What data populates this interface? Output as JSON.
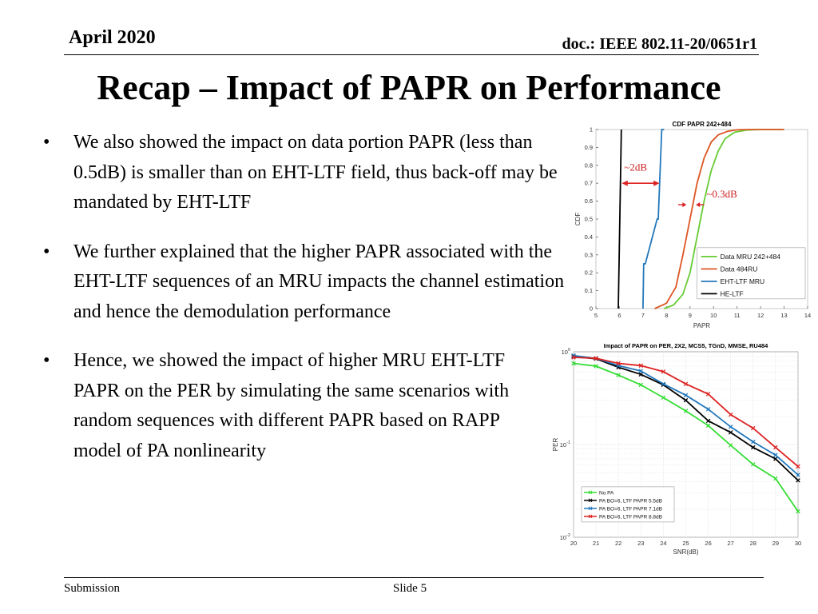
{
  "header": {
    "date": "April 2020",
    "doc": "doc.: IEEE 802.11-20/0651r1"
  },
  "title": "Recap – Impact of PAPR on Performance",
  "bullets": [
    "We also showed the impact on data portion PAPR (less than 0.5dB) is  smaller than on EHT-LTF field, thus back-off may be mandated by EHT-LTF",
    "We further explained that the higher PAPR associated with the EHT-LTF sequences of an MRU impacts the channel estimation and hence the demodulation performance",
    "Hence, we showed the impact of higher MRU EHT-LTF PAPR on the PER by simulating the same scenarios with random sequences with different PAPR based on RAPP model of PA nonlinearity"
  ],
  "bullet_glyph": "•",
  "footer": {
    "left": "Submission",
    "center": "Slide 5"
  },
  "chart_data": [
    {
      "type": "line",
      "title": "CDF PAPR 242+484",
      "xlabel": "PAPR",
      "ylabel": "CDF",
      "xlim": [
        5,
        14
      ],
      "ylim": [
        0,
        1
      ],
      "xticks": [
        "5",
        "6",
        "7",
        "8",
        "9",
        "10",
        "11",
        "12",
        "13",
        "14"
      ],
      "yticks": [
        "0",
        "0.1",
        "0.2",
        "0.3",
        "0.4",
        "0.5",
        "0.6",
        "0.7",
        "0.8",
        "0.9",
        "1"
      ],
      "legend_position": "bottom-right",
      "series": [
        {
          "name": "Data MRU 242+484",
          "color": "#66cc33",
          "x": [
            7.9,
            8.3,
            8.7,
            9.0,
            9.3,
            9.6,
            9.9,
            10.2,
            10.5,
            10.9,
            11.4,
            12.0,
            13.0
          ],
          "y": [
            0,
            0.02,
            0.08,
            0.2,
            0.4,
            0.6,
            0.77,
            0.88,
            0.95,
            0.985,
            0.997,
            1,
            1
          ]
        },
        {
          "name": "Data 484RU",
          "color": "#dd5522",
          "x": [
            7.5,
            8.0,
            8.4,
            8.7,
            9.0,
            9.3,
            9.6,
            9.9,
            10.2,
            10.6,
            11.0,
            11.5,
            13.0
          ],
          "y": [
            0,
            0.03,
            0.12,
            0.3,
            0.5,
            0.7,
            0.84,
            0.93,
            0.97,
            0.99,
            0.998,
            1,
            1
          ]
        },
        {
          "name": "EHT-LTF MRU",
          "color": "#2277bb",
          "x": [
            7.0,
            7.03,
            7.1,
            7.6,
            7.65,
            7.8,
            7.9
          ],
          "y": [
            0,
            0.25,
            0.25,
            0.5,
            0.5,
            1,
            1
          ]
        },
        {
          "name": "HE-LTF",
          "color": "#000000",
          "x": [
            5.95,
            6.08
          ],
          "y": [
            0,
            1
          ]
        }
      ],
      "annotations": [
        {
          "text": "~2dB",
          "color": "#cc2222"
        },
        {
          "text": "~0.3dB",
          "color": "#cc2222"
        }
      ]
    },
    {
      "type": "line",
      "title": "Impact of PAPR on PER, 2X2, MCS5, TGnD, MMSE, RU484",
      "xlabel": "SNR(dB)",
      "ylabel": "PER",
      "yscale": "log",
      "xlim": [
        20,
        30
      ],
      "ylim": [
        0.01,
        1
      ],
      "grid": true,
      "xticks": [
        "20",
        "21",
        "22",
        "23",
        "24",
        "25",
        "26",
        "27",
        "28",
        "29",
        "30"
      ],
      "legend_position": "bottom-left",
      "x": [
        20,
        21,
        22,
        23,
        24,
        25,
        26,
        27,
        28,
        29,
        30
      ],
      "series": [
        {
          "name": "No PA",
          "color": "#33dd33",
          "marker": "x",
          "values": [
            0.75,
            0.7,
            0.56,
            0.44,
            0.32,
            0.23,
            0.16,
            0.098,
            0.061,
            0.043,
            0.019
          ]
        },
        {
          "name": "PA BO=6, LTF PAPR 5.5dB",
          "color": "#000000",
          "marker": "x",
          "values": [
            0.89,
            0.84,
            0.68,
            0.57,
            0.44,
            0.3,
            0.18,
            0.135,
            0.093,
            0.07,
            0.041
          ]
        },
        {
          "name": "PA BO=6, LTF PAPR 7.1dB",
          "color": "#2277bb",
          "marker": "x",
          "values": [
            0.91,
            0.85,
            0.71,
            0.62,
            0.45,
            0.34,
            0.24,
            0.155,
            0.107,
            0.077,
            0.047
          ]
        },
        {
          "name": "PA BO=6, LTF PAPR 8.8dB",
          "color": "#dd2222",
          "marker": "x",
          "values": [
            0.87,
            0.85,
            0.75,
            0.71,
            0.61,
            0.45,
            0.35,
            0.21,
            0.15,
            0.093,
            0.058
          ]
        }
      ]
    }
  ]
}
